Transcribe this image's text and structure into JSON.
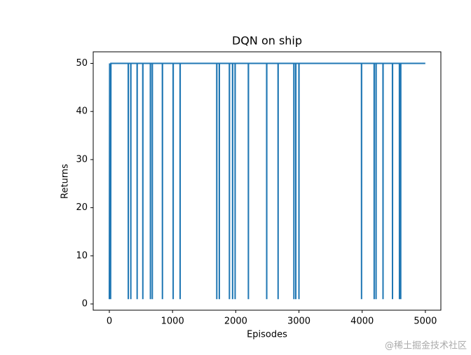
{
  "chart_data": {
    "type": "line",
    "title": "DQN on ship",
    "x_label": "Episodes",
    "y_label": "Returns",
    "x": [
      0,
      5,
      10,
      15,
      20,
      25,
      299,
      300,
      301,
      339,
      340,
      341,
      439,
      440,
      441,
      529,
      530,
      531,
      649,
      650,
      651,
      679,
      680,
      681,
      839,
      840,
      841,
      1009,
      1010,
      1011,
      1119,
      1120,
      1121,
      1699,
      1700,
      1701,
      1739,
      1740,
      1741,
      1899,
      1900,
      1901,
      1949,
      1950,
      1951,
      1989,
      1990,
      1991,
      2199,
      2200,
      2201,
      2489,
      2490,
      2491,
      2669,
      2670,
      2671,
      2919,
      2920,
      2921,
      2949,
      2950,
      2951,
      2999,
      3000,
      3001,
      3989,
      3990,
      3991,
      4189,
      4190,
      4191,
      4219,
      4220,
      4221,
      4329,
      4330,
      4331,
      4479,
      4480,
      4481,
      4589,
      4590,
      4591,
      4609,
      4610,
      4611,
      4999
    ],
    "series": [
      {
        "color": "#1f77b4",
        "values": [
          1,
          50,
          1,
          50,
          1,
          50,
          50,
          1,
          50,
          50,
          1,
          50,
          50,
          1,
          50,
          50,
          1,
          50,
          50,
          1,
          50,
          50,
          1,
          50,
          50,
          1,
          50,
          50,
          1,
          50,
          50,
          1,
          50,
          50,
          1,
          50,
          50,
          1,
          50,
          50,
          1,
          50,
          50,
          1,
          50,
          50,
          1,
          50,
          50,
          1,
          50,
          50,
          1,
          50,
          50,
          1,
          50,
          50,
          1,
          50,
          50,
          1,
          50,
          50,
          1,
          50,
          50,
          1,
          50,
          50,
          1,
          50,
          50,
          1,
          50,
          50,
          1,
          50,
          50,
          1,
          50,
          50,
          1,
          50,
          50,
          1,
          50,
          50
        ]
      }
    ],
    "xlim": [
      -255,
      5245
    ],
    "ylim": [
      -1.3,
      52.4
    ],
    "xticks": [
      0,
      1000,
      2000,
      3000,
      4000,
      5000
    ],
    "yticks": [
      0,
      10,
      20,
      30,
      40,
      50
    ],
    "watermark": "@稀土掘金技术社区"
  }
}
